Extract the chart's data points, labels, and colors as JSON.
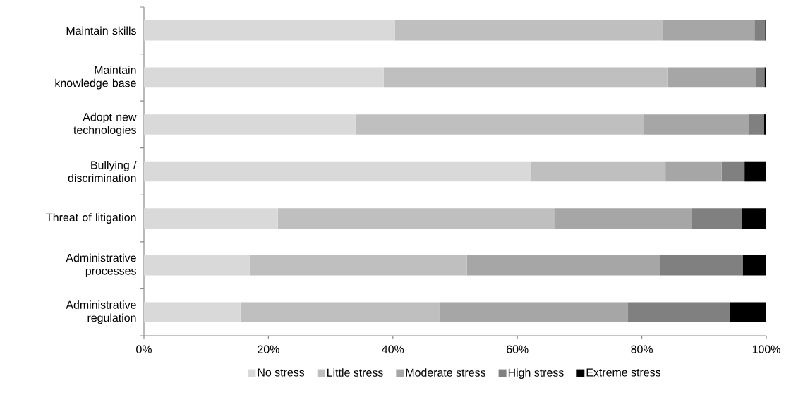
{
  "chart_data": {
    "type": "bar",
    "orientation": "horizontal",
    "stacked": true,
    "categories": [
      "Maintain skills",
      "Maintain knowledge base",
      "Adopt new technologies",
      "Bullying / discrimination",
      "Threat of litigation",
      "Administrative processes",
      "Administrative regulation"
    ],
    "series": [
      {
        "name": "No stress",
        "color": "#d9d9d9",
        "values": [
          40.3,
          38.5,
          34.0,
          62.2,
          21.5,
          17.0,
          15.5
        ]
      },
      {
        "name": "Little stress",
        "color": "#bfbfbf",
        "values": [
          43.1,
          45.6,
          46.3,
          21.6,
          44.4,
          34.9,
          32.0
        ]
      },
      {
        "name": "Moderate stress",
        "color": "#a6a6a6",
        "values": [
          14.7,
          14.2,
          16.9,
          9.0,
          22.1,
          31.0,
          30.2
        ]
      },
      {
        "name": "High stress",
        "color": "#808080",
        "values": [
          1.7,
          1.4,
          2.4,
          3.7,
          8.1,
          13.3,
          16.4
        ]
      },
      {
        "name": "Extreme stress",
        "color": "#000000",
        "values": [
          0.2,
          0.3,
          0.4,
          3.5,
          3.9,
          3.8,
          5.9
        ]
      }
    ],
    "xlim": [
      0,
      100
    ],
    "xticks": [
      {
        "value": 0,
        "label": "0%"
      },
      {
        "value": 20,
        "label": "20%"
      },
      {
        "value": 40,
        "label": "40%"
      },
      {
        "value": 60,
        "label": "60%"
      },
      {
        "value": 80,
        "label": "80%"
      },
      {
        "value": 100,
        "label": "100%"
      }
    ],
    "grid": false,
    "legend": "bottom"
  }
}
